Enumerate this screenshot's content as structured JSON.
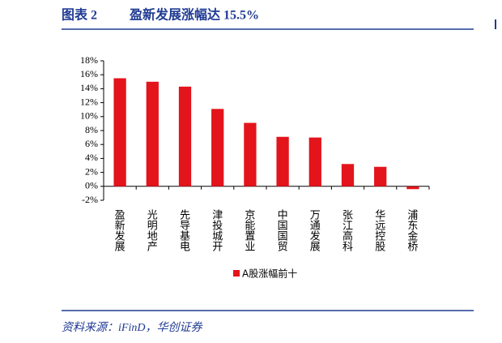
{
  "chart_data": {
    "type": "bar",
    "figure_label": "图表 2",
    "title": "盈新发展涨幅达 15.5%",
    "source": "资料来源：iFinD，华创证券",
    "categories": [
      "盈新发展",
      "光明地产",
      "先导基电",
      "津投城开",
      "京能置业",
      "中国国贸",
      "万通发展",
      "张江高科",
      "华远控股",
      "浦东金桥"
    ],
    "series": [
      {
        "name": "A股涨幅前十",
        "color": "#e3141c",
        "values": [
          15.5,
          15.0,
          14.3,
          11.1,
          9.1,
          7.1,
          7.0,
          3.2,
          2.8,
          -0.4
        ]
      }
    ],
    "ylim": [
      -2,
      18
    ],
    "yticks": [
      {
        "value": -2,
        "label": "-2%"
      },
      {
        "value": 0,
        "label": "0%"
      },
      {
        "value": 2,
        "label": "2%"
      },
      {
        "value": 4,
        "label": "4%"
      },
      {
        "value": 6,
        "label": "6%"
      },
      {
        "value": 8,
        "label": "8%"
      },
      {
        "value": 10,
        "label": "10%"
      },
      {
        "value": 12,
        "label": "12%"
      },
      {
        "value": 14,
        "label": "14%"
      },
      {
        "value": 16,
        "label": "16%"
      },
      {
        "value": 18,
        "label": "18%"
      }
    ]
  }
}
